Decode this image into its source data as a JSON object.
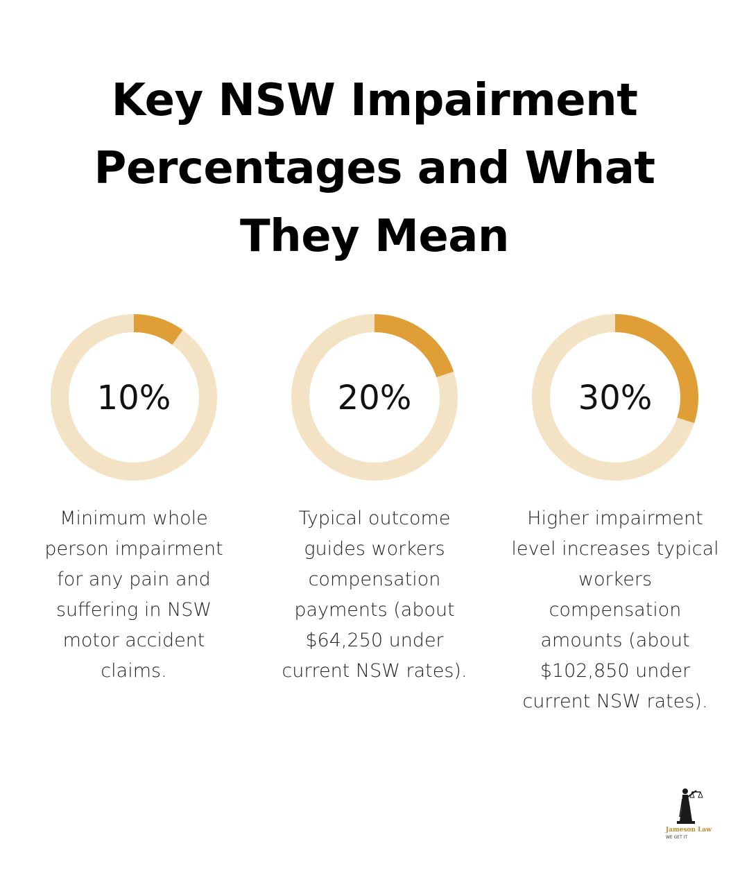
{
  "title": "Key NSW Impairment Percentages and What They Mean",
  "colors": {
    "accent": "#E09F36",
    "track": "#F3E2C4",
    "text": "#111111"
  },
  "chart_data": {
    "type": "donut",
    "title": "Key NSW Impairment Percentages and What They Mean",
    "max": 100,
    "items": [
      {
        "value": 10,
        "label": "10%",
        "description": "Minimum whole person impairment for any pain and suffering in NSW motor accident claims."
      },
      {
        "value": 20,
        "label": "20%",
        "description": "Typical outcome guides workers compensation payments (about $64,250 under current NSW rates)."
      },
      {
        "value": 30,
        "label": "30%",
        "description": "Higher impairment level increases typical workers compensation amounts (about $102,850 under current NSW rates)."
      }
    ]
  },
  "logo": {
    "name": "Jameson Law",
    "tagline": "WE GET IT",
    "icon": "lady-justice-icon"
  }
}
